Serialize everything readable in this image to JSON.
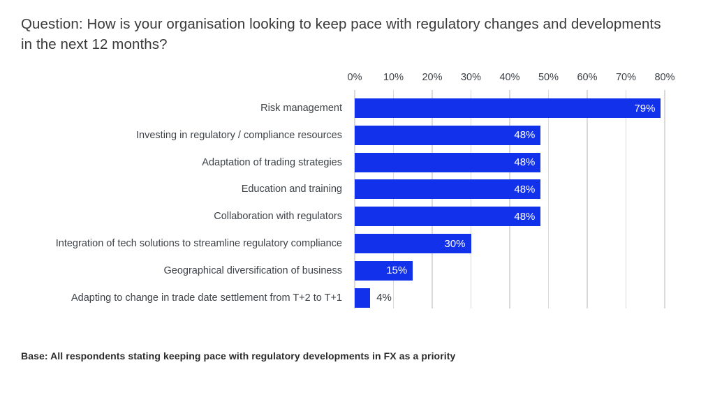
{
  "header": {
    "title_line1": "Question: How is your organisation looking to keep pace with regulatory changes and developments",
    "title_line2": "in the next 12 months?"
  },
  "chart_data": {
    "type": "bar",
    "orientation": "horizontal",
    "title": "",
    "xlabel": "",
    "ylabel": "",
    "xlim": [
      0,
      80
    ],
    "x_ticks": [
      "0%",
      "10%",
      "20%",
      "30%",
      "40%",
      "50%",
      "60%",
      "70%",
      "80%"
    ],
    "grid": true,
    "categories": [
      "Risk management",
      "Investing in regulatory / compliance resources",
      "Adaptation of trading strategies",
      "Education and training",
      "Collaboration with regulators",
      "Integration of tech solutions to streamline regulatory compliance",
      "Geographical diversification of business",
      "Adapting to change in trade date settlement from T+2 to T+1"
    ],
    "values": [
      79,
      48,
      48,
      48,
      48,
      30,
      15,
      4
    ],
    "value_labels": [
      "79%",
      "48%",
      "48%",
      "48%",
      "48%",
      "30%",
      "15%",
      "4%"
    ],
    "colors": {
      "bar": "#1231eb",
      "gridline": "#d9d9d9",
      "value_label_inside": "#ffffff",
      "value_label_outside": "#33373c",
      "axis_text": "#3d4247"
    }
  },
  "footer": {
    "note": "Base: All respondents stating keeping pace with regulatory developments in FX as a priority"
  }
}
